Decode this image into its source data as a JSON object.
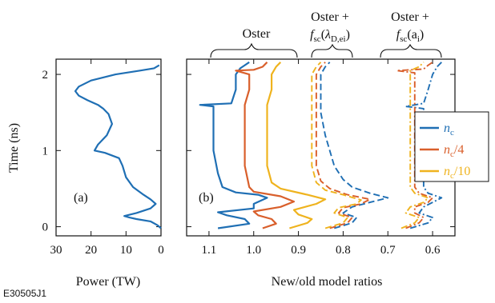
{
  "figure_id": "E30505J1",
  "chart_data": [
    {
      "type": "line",
      "panel_label": "(a)",
      "xlabel": "Power (TW)",
      "ylabel": "Time (ns)",
      "xlim": [
        30,
        0
      ],
      "ylim": [
        -0.12,
        2.2
      ],
      "x_ticks": [
        30,
        20,
        10,
        0
      ],
      "y_ticks": [
        0,
        1,
        2
      ],
      "series": [
        {
          "color": "#1f6fb4",
          "points": [
            [
              0,
              -0.02
            ],
            [
              1,
              0.02
            ],
            [
              3,
              0.07
            ],
            [
              7,
              0.1
            ],
            [
              9,
              0.12
            ],
            [
              10.5,
              0.14
            ],
            [
              7,
              0.18
            ],
            [
              3,
              0.24
            ],
            [
              1.5,
              0.3
            ],
            [
              3,
              0.36
            ],
            [
              5,
              0.42
            ],
            [
              8,
              0.52
            ],
            [
              10,
              0.65
            ],
            [
              11,
              0.8
            ],
            [
              12,
              0.9
            ],
            [
              16,
              0.97
            ],
            [
              19,
              1.0
            ],
            [
              18,
              1.08
            ],
            [
              15.5,
              1.2
            ],
            [
              14,
              1.35
            ],
            [
              15,
              1.48
            ],
            [
              16.5,
              1.55
            ],
            [
              18,
              1.6
            ],
            [
              21,
              1.66
            ],
            [
              23.5,
              1.72
            ],
            [
              24.5,
              1.78
            ],
            [
              23.5,
              1.84
            ],
            [
              20,
              1.92
            ],
            [
              13,
              2.0
            ],
            [
              6,
              2.05
            ],
            [
              2,
              2.08
            ],
            [
              0.5,
              2.12
            ]
          ]
        }
      ]
    },
    {
      "type": "line",
      "panel_label": "(b)",
      "xlabel": "New/old model ratios",
      "xlim": [
        1.15,
        0.55
      ],
      "ylim": [
        -0.12,
        2.2
      ],
      "x_ticks": [
        1.1,
        1.0,
        0.9,
        0.8,
        0.7,
        0.6
      ],
      "y_ticks": [
        0,
        1,
        2
      ],
      "group_labels": [
        {
          "line1": "Oster",
          "line2": ""
        },
        {
          "line1": "Oster +",
          "line2": "fsc(λD,ei)"
        },
        {
          "line1": "Oster +",
          "line2": "fsc(ai)"
        }
      ],
      "legend_position": "right",
      "series": [
        {
          "name": "nc",
          "color": "#1f6fb4",
          "model": "Oster",
          "style": "solid",
          "points": [
            [
              1.08,
              -0.02
            ],
            [
              1.01,
              0.04
            ],
            [
              1.02,
              0.1
            ],
            [
              1.06,
              0.15
            ],
            [
              1.08,
              0.19
            ],
            [
              1.0,
              0.24
            ],
            [
              1.0,
              0.3
            ],
            [
              0.97,
              0.38
            ],
            [
              0.99,
              0.42
            ],
            [
              1.04,
              0.45
            ],
            [
              1.07,
              0.52
            ],
            [
              1.08,
              0.7
            ],
            [
              1.09,
              1.0
            ],
            [
              1.09,
              1.4
            ],
            [
              1.09,
              1.58
            ],
            [
              1.12,
              1.6
            ],
            [
              1.05,
              1.62
            ],
            [
              1.04,
              1.8
            ],
            [
              1.04,
              2.0
            ],
            [
              1.03,
              2.08
            ],
            [
              1.02,
              2.12
            ],
            [
              1.01,
              2.16
            ]
          ]
        },
        {
          "name": "nc/4",
          "color": "#d95f2b",
          "model": "Oster",
          "style": "solid",
          "points": [
            [
              0.98,
              -0.02
            ],
            [
              0.95,
              0.04
            ],
            [
              0.96,
              0.1
            ],
            [
              0.99,
              0.15
            ],
            [
              1.0,
              0.2
            ],
            [
              0.94,
              0.26
            ],
            [
              0.91,
              0.33
            ],
            [
              0.94,
              0.4
            ],
            [
              1.0,
              0.46
            ],
            [
              1.01,
              0.52
            ],
            [
              1.02,
              0.8
            ],
            [
              1.02,
              1.2
            ],
            [
              1.02,
              1.6
            ],
            [
              1.01,
              1.8
            ],
            [
              1.01,
              2.0
            ],
            [
              1.04,
              2.05
            ],
            [
              1.0,
              2.06
            ],
            [
              0.98,
              2.1
            ],
            [
              0.97,
              2.16
            ]
          ]
        },
        {
          "name": "nc/10",
          "color": "#efb31e",
          "model": "Oster",
          "style": "solid",
          "points": [
            [
              0.92,
              -0.02
            ],
            [
              0.88,
              0.05
            ],
            [
              0.87,
              0.1
            ],
            [
              0.9,
              0.16
            ],
            [
              0.91,
              0.22
            ],
            [
              0.86,
              0.3
            ],
            [
              0.84,
              0.36
            ],
            [
              0.88,
              0.42
            ],
            [
              0.94,
              0.5
            ],
            [
              0.96,
              0.58
            ],
            [
              0.97,
              0.8
            ],
            [
              0.97,
              1.2
            ],
            [
              0.97,
              1.6
            ],
            [
              0.96,
              1.8
            ],
            [
              0.96,
              2.0
            ],
            [
              0.95,
              2.1
            ],
            [
              0.94,
              2.16
            ]
          ]
        },
        {
          "name": "nc",
          "color": "#1f6fb4",
          "model": "fsc(λD,ei)",
          "style": "dashed",
          "points": [
            [
              0.82,
              -0.02
            ],
            [
              0.78,
              0.05
            ],
            [
              0.77,
              0.12
            ],
            [
              0.8,
              0.18
            ],
            [
              0.78,
              0.26
            ],
            [
              0.74,
              0.32
            ],
            [
              0.7,
              0.38
            ],
            [
              0.74,
              0.44
            ],
            [
              0.78,
              0.52
            ],
            [
              0.8,
              0.62
            ],
            [
              0.82,
              0.8
            ],
            [
              0.83,
              1.0
            ],
            [
              0.84,
              1.2
            ],
            [
              0.85,
              1.5
            ],
            [
              0.85,
              1.8
            ],
            [
              0.85,
              2.0
            ],
            [
              0.84,
              2.1
            ],
            [
              0.83,
              2.16
            ]
          ]
        },
        {
          "name": "nc/4",
          "color": "#d95f2b",
          "model": "fsc(λD,ei)",
          "style": "dashed",
          "points": [
            [
              0.83,
              -0.02
            ],
            [
              0.79,
              0.05
            ],
            [
              0.78,
              0.12
            ],
            [
              0.81,
              0.18
            ],
            [
              0.8,
              0.25
            ],
            [
              0.76,
              0.3
            ],
            [
              0.74,
              0.36
            ],
            [
              0.79,
              0.42
            ],
            [
              0.83,
              0.5
            ],
            [
              0.85,
              0.6
            ],
            [
              0.86,
              0.8
            ],
            [
              0.86,
              1.2
            ],
            [
              0.86,
              1.6
            ],
            [
              0.86,
              1.9
            ],
            [
              0.86,
              2.0
            ],
            [
              0.85,
              2.1
            ],
            [
              0.84,
              2.16
            ]
          ]
        },
        {
          "name": "nc/10",
          "color": "#efb31e",
          "model": "fsc(λD,ei)",
          "style": "dashed",
          "points": [
            [
              0.84,
              -0.02
            ],
            [
              0.8,
              0.05
            ],
            [
              0.79,
              0.12
            ],
            [
              0.82,
              0.18
            ],
            [
              0.81,
              0.25
            ],
            [
              0.77,
              0.3
            ],
            [
              0.76,
              0.35
            ],
            [
              0.8,
              0.42
            ],
            [
              0.84,
              0.48
            ],
            [
              0.86,
              0.58
            ],
            [
              0.87,
              0.8
            ],
            [
              0.87,
              1.2
            ],
            [
              0.87,
              1.6
            ],
            [
              0.87,
              1.9
            ],
            [
              0.87,
              2.0
            ],
            [
              0.86,
              2.1
            ],
            [
              0.85,
              2.16
            ]
          ]
        },
        {
          "name": "nc",
          "color": "#1f6fb4",
          "model": "fsc(ai)",
          "style": "dashdot",
          "points": [
            [
              0.65,
              -0.02
            ],
            [
              0.61,
              0.05
            ],
            [
              0.6,
              0.12
            ],
            [
              0.63,
              0.18
            ],
            [
              0.62,
              0.26
            ],
            [
              0.6,
              0.32
            ],
            [
              0.58,
              0.38
            ],
            [
              0.61,
              0.44
            ],
            [
              0.62,
              0.52
            ],
            [
              0.62,
              0.8
            ],
            [
              0.62,
              1.2
            ],
            [
              0.62,
              1.55
            ],
            [
              0.66,
              1.58
            ],
            [
              0.62,
              1.62
            ],
            [
              0.61,
              1.8
            ],
            [
              0.6,
              2.0
            ],
            [
              0.59,
              2.1
            ],
            [
              0.58,
              2.16
            ]
          ]
        },
        {
          "name": "nc/4",
          "color": "#d95f2b",
          "model": "fsc(ai)",
          "style": "dashdot",
          "points": [
            [
              0.66,
              -0.02
            ],
            [
              0.63,
              0.05
            ],
            [
              0.62,
              0.12
            ],
            [
              0.64,
              0.18
            ],
            [
              0.64,
              0.26
            ],
            [
              0.61,
              0.32
            ],
            [
              0.6,
              0.38
            ],
            [
              0.63,
              0.44
            ],
            [
              0.64,
              0.52
            ],
            [
              0.64,
              0.8
            ],
            [
              0.64,
              1.2
            ],
            [
              0.64,
              1.6
            ],
            [
              0.64,
              1.9
            ],
            [
              0.64,
              2.02
            ],
            [
              0.68,
              2.05
            ],
            [
              0.62,
              2.07
            ],
            [
              0.61,
              2.12
            ],
            [
              0.6,
              2.16
            ]
          ]
        },
        {
          "name": "nc/10",
          "color": "#efb31e",
          "model": "fsc(ai)",
          "style": "dashdot",
          "points": [
            [
              0.67,
              -0.02
            ],
            [
              0.64,
              0.05
            ],
            [
              0.63,
              0.12
            ],
            [
              0.66,
              0.18
            ],
            [
              0.65,
              0.26
            ],
            [
              0.62,
              0.32
            ],
            [
              0.61,
              0.38
            ],
            [
              0.64,
              0.44
            ],
            [
              0.65,
              0.52
            ],
            [
              0.65,
              0.8
            ],
            [
              0.65,
              1.2
            ],
            [
              0.65,
              1.6
            ],
            [
              0.65,
              1.9
            ],
            [
              0.65,
              2.05
            ],
            [
              0.63,
              2.1
            ],
            [
              0.62,
              2.16
            ]
          ]
        }
      ]
    }
  ],
  "legend": {
    "items": [
      {
        "symbol": "n",
        "sub": "c",
        "suffix": "",
        "color": "#1f6fb4"
      },
      {
        "symbol": "n",
        "sub": "c",
        "suffix": "/4",
        "color": "#d95f2b"
      },
      {
        "symbol": "n",
        "sub": "c",
        "suffix": "/10",
        "color": "#efb31e"
      }
    ]
  }
}
